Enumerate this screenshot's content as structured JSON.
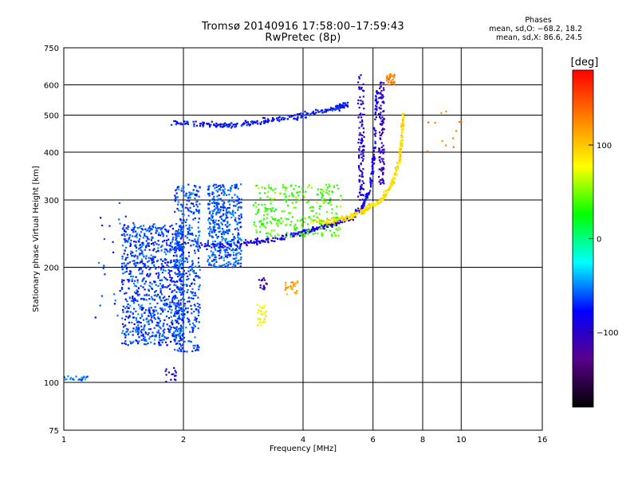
{
  "title": {
    "line1": "Tromsø 20140916 17:58:00–17:59:43",
    "line2": "RwPretec (8p)"
  },
  "phases_box": {
    "heading": "Phases",
    "line_o": "mean, sd,O: −68.2, 18.2",
    "line_x": "mean, sd,X:  86.6, 24.5"
  },
  "colorbar": {
    "unit_label": "[deg]",
    "ticks": [
      {
        "value": 100,
        "label": "100"
      },
      {
        "value": 0,
        "label": "0"
      },
      {
        "value": -100,
        "label": "−100"
      }
    ],
    "range": [
      -180,
      180
    ],
    "colors": [
      "#000000",
      "#5a008c",
      "#0000ff",
      "#00ffff",
      "#00ff00",
      "#ffff00",
      "#ff8000",
      "#ff0000"
    ]
  },
  "chart_data": {
    "type": "scatter",
    "title": "Tromsø 20140916 17:58:00–17:59:43",
    "subtitle": "RwPretec (8p)",
    "xlabel": "Frequency [MHz]",
    "ylabel": "Stationary phase Virtual Height [km]",
    "xscale": "log",
    "yscale": "log",
    "xlim": [
      1,
      16
    ],
    "ylim": [
      75,
      750
    ],
    "xticks": [
      1,
      2,
      4,
      6,
      8,
      10,
      16
    ],
    "yticks": [
      75,
      100,
      200,
      300,
      400,
      500,
      600,
      750
    ],
    "xgrid": [
      2,
      4,
      6,
      8,
      10
    ],
    "ygrid": [
      100,
      200,
      300,
      400,
      500,
      600
    ],
    "grid": true,
    "color_variable": "phase [deg]",
    "clusters": [
      {
        "desc": "diffuse low spread",
        "f": [
          1.4,
          2.0
        ],
        "h": [
          125,
          260
        ],
        "phase": -65,
        "n": 900
      },
      {
        "desc": "diffuse low spread upper",
        "f": [
          1.9,
          2.2
        ],
        "h": [
          120,
          330
        ],
        "phase": -62,
        "n": 450
      },
      {
        "desc": "spread 2.3-2.8",
        "f": [
          2.3,
          2.8
        ],
        "h": [
          200,
          330
        ],
        "phase": -60,
        "n": 450
      },
      {
        "desc": "isolated low",
        "f": [
          1.2,
          1.6
        ],
        "h": [
          135,
          300
        ],
        "phase": -65,
        "n": 40
      },
      {
        "desc": "F2 O-trace",
        "curve": [
          [
            2.2,
            228
          ],
          [
            3.0,
            232
          ],
          [
            3.6,
            240
          ],
          [
            4.2,
            250
          ],
          [
            4.8,
            260
          ],
          [
            5.3,
            270
          ],
          [
            5.6,
            285
          ],
          [
            5.9,
            320
          ],
          [
            6.05,
            400
          ],
          [
            6.15,
            600
          ]
        ],
        "phase": -85,
        "n": 380
      },
      {
        "desc": "F2 X-trace",
        "curve": [
          [
            4.2,
            262
          ],
          [
            4.8,
            265
          ],
          [
            5.3,
            272
          ],
          [
            5.8,
            285
          ],
          [
            6.3,
            300
          ],
          [
            6.7,
            330
          ],
          [
            7.0,
            380
          ],
          [
            7.1,
            440
          ],
          [
            7.15,
            500
          ]
        ],
        "phase": 92,
        "n": 320
      },
      {
        "desc": "mixed 3-5 MHz band",
        "f": [
          3.0,
          5.0
        ],
        "h": [
          240,
          330
        ],
        "phase": 40,
        "n": 280
      },
      {
        "desc": "multiple 470-530",
        "curve": [
          [
            1.85,
            480
          ],
          [
            2.5,
            470
          ],
          [
            3.1,
            480
          ],
          [
            4.0,
            500
          ],
          [
            4.8,
            520
          ],
          [
            5.2,
            535
          ]
        ],
        "phase": -75,
        "n": 260
      },
      {
        "desc": "column 5.6",
        "f": [
          5.5,
          5.7
        ],
        "h": [
          300,
          640
        ],
        "phase": -95,
        "n": 110
      },
      {
        "desc": "column 6.3",
        "f": [
          6.2,
          6.4
        ],
        "h": [
          330,
          620
        ],
        "phase": -105,
        "n": 110
      },
      {
        "desc": "top cluster 6.6",
        "f": [
          6.5,
          6.8
        ],
        "h": [
          600,
          640
        ],
        "phase": 130,
        "n": 35
      },
      {
        "desc": "es 3.1",
        "f": [
          3.05,
          3.25
        ],
        "h": [
          140,
          160
        ],
        "phase": 80,
        "n": 30
      },
      {
        "desc": "es 3.8",
        "f": [
          3.6,
          3.9
        ],
        "h": [
          170,
          185
        ],
        "phase": 120,
        "n": 25
      },
      {
        "desc": "low 1.0-1.15",
        "f": [
          1.0,
          1.15
        ],
        "h": [
          101,
          104
        ],
        "phase": -50,
        "n": 25
      },
      {
        "desc": "low 1.8-2.0",
        "f": [
          1.8,
          1.95
        ],
        "h": [
          100,
          110
        ],
        "phase": -95,
        "n": 15
      },
      {
        "desc": "blue 3.1",
        "f": [
          3.1,
          3.25
        ],
        "h": [
          175,
          190
        ],
        "phase": -105,
        "n": 15
      },
      {
        "desc": "sparse right",
        "f": [
          8.0,
          10.0
        ],
        "h": [
          400,
          520
        ],
        "phase": 130,
        "n": 12
      }
    ]
  }
}
